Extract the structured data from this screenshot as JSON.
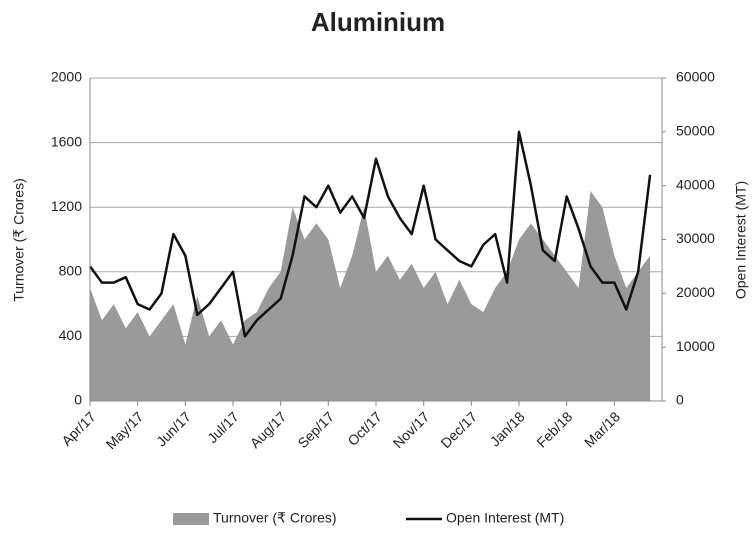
{
  "chart_data": {
    "type": "area-line",
    "title": "Aluminium",
    "y_label": "Turnover (₹ Crores)",
    "y2_label": "Open Interest (MT)",
    "categories": [
      "Apr/17",
      null,
      null,
      null,
      "May/17",
      null,
      null,
      null,
      "Jun/17",
      null,
      null,
      null,
      "Jul/17",
      null,
      null,
      null,
      "Aug/17",
      null,
      null,
      null,
      "Sep/17",
      null,
      null,
      null,
      "Oct/17",
      null,
      null,
      null,
      "Nov/17",
      null,
      null,
      null,
      "Dec/17",
      null,
      null,
      null,
      "Jan/18",
      null,
      null,
      null,
      "Feb/18",
      null,
      null,
      null,
      "Mar/18",
      null,
      null,
      null
    ],
    "series": [
      {
        "name": "Turnover (₹ Crores)",
        "type": "area",
        "color": "#9a9a9a",
        "values": [
          700,
          500,
          600,
          450,
          550,
          400,
          500,
          600,
          350,
          650,
          400,
          500,
          350,
          500,
          550,
          700,
          800,
          1200,
          1000,
          1100,
          1000,
          700,
          900,
          1200,
          800,
          900,
          750,
          850,
          700,
          800,
          600,
          750,
          600,
          550,
          700,
          800,
          1000,
          1100,
          1000,
          900,
          800,
          700,
          1300,
          1200,
          900,
          700,
          800,
          900
        ]
      },
      {
        "name": "Open Interest (MT)",
        "type": "line",
        "axis": "y2",
        "color": "#111111",
        "values": [
          25000,
          22000,
          22000,
          23000,
          18000,
          17000,
          20000,
          31000,
          27000,
          16000,
          18000,
          21000,
          24000,
          12000,
          15000,
          17000,
          19000,
          27000,
          38000,
          36000,
          40000,
          35000,
          38000,
          34000,
          45000,
          38000,
          34000,
          31000,
          40000,
          30000,
          28000,
          26000,
          25000,
          29000,
          31000,
          22000,
          50000,
          40000,
          28000,
          26000,
          38000,
          32000,
          25000,
          22000,
          22000,
          17000,
          24000,
          42000
        ]
      }
    ],
    "ylim": [
      0,
      2000
    ],
    "yticks": [
      0,
      400,
      800,
      1200,
      1600,
      2000
    ],
    "y2lim": [
      0,
      60000
    ],
    "y2ticks": [
      0,
      10000,
      20000,
      30000,
      40000,
      50000,
      60000
    ],
    "grid": true,
    "legend": "bottom"
  }
}
